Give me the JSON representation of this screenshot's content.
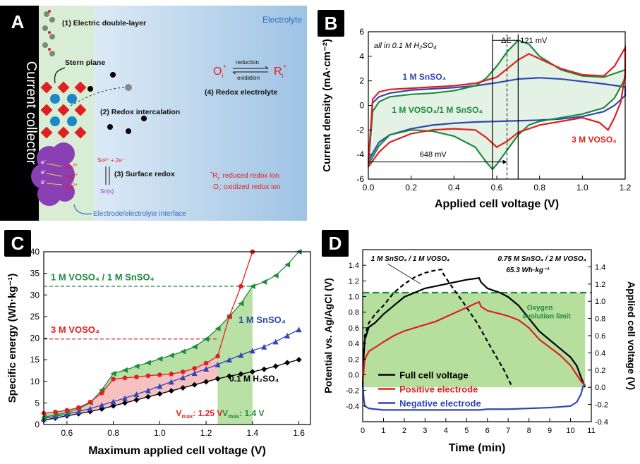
{
  "panels": {
    "A": {
      "badge": "A",
      "collector_label": "Current collector",
      "electrolyte_label": "Electrolyte",
      "mech1": "(1) Electric double-layer",
      "stern": "Stern plane",
      "mech2": "(2) Redox intercalation",
      "mech3": "(3) Surface redox",
      "mech4": "(4) Redox electrolyte",
      "reduction": "reduction",
      "oxidation": "oxidation",
      "o_species": "O",
      "r_species": "R",
      "sub_i": "i",
      "star": "*",
      "sn2": "Sn",
      "sn2_charge": "2+",
      "electron": "e",
      "reaction": "Sn²⁺ + 2e⁻",
      "sn_s": "Sn(s)",
      "legend_r": ": reduced redox ion",
      "legend_o": ": oxidized redox ion",
      "interface": "Electrode/electrolyte interface"
    },
    "B": {
      "badge": "B"
    },
    "C": {
      "badge": "C"
    },
    "D": {
      "badge": "D"
    }
  },
  "colors": {
    "green": "#1e8b3c",
    "red": "#e02020",
    "blue": "#2f47b5",
    "black": "#000000",
    "blue_label": "#2f6fbf",
    "fill_green": "#a7d98f",
    "fill_red": "#f6b6b6"
  },
  "chart_data": [
    {
      "panel": "B",
      "type": "line",
      "xlabel": "Applied cell voltage (V)",
      "ylabel": "Current density (mA·cm⁻²)",
      "xlim": [
        0.0,
        1.2
      ],
      "ylim": [
        -6,
        6
      ],
      "xticks": [
        "0.0",
        "0.2",
        "0.4",
        "0.6",
        "0.8",
        "1.0",
        "1.2"
      ],
      "yticks": [
        "-6",
        "-4",
        "-2",
        "0",
        "2",
        "4",
        "6"
      ],
      "annotation_top": "all in 0.1 M H₂SO₄",
      "annotation_delta": "ΔE ~ 121 mV",
      "annotation_648": "648 mV",
      "vlines": [
        0.58,
        0.648,
        0.7
      ],
      "series": [
        {
          "name": "1 M SnSO₄",
          "color": "#2f47b5",
          "upper": [
            [
              0.0,
              -4.5
            ],
            [
              0.02,
              0.2
            ],
            [
              0.05,
              0.7
            ],
            [
              0.1,
              1.0
            ],
            [
              0.2,
              1.25
            ],
            [
              0.3,
              1.35
            ],
            [
              0.4,
              1.45
            ],
            [
              0.5,
              1.6
            ],
            [
              0.6,
              1.85
            ],
            [
              0.7,
              2.15
            ],
            [
              0.8,
              2.25
            ],
            [
              0.9,
              2.15
            ],
            [
              1.0,
              1.95
            ],
            [
              1.1,
              1.75
            ],
            [
              1.2,
              1.5
            ],
            [
              1.2,
              0.8
            ]
          ],
          "lower": [
            [
              1.2,
              0.8
            ],
            [
              1.15,
              0.0
            ],
            [
              1.1,
              -0.5
            ],
            [
              1.0,
              -0.9
            ],
            [
              0.9,
              -1.1
            ],
            [
              0.8,
              -1.2
            ],
            [
              0.7,
              -1.25
            ],
            [
              0.6,
              -1.3
            ],
            [
              0.5,
              -1.35
            ],
            [
              0.4,
              -1.45
            ],
            [
              0.3,
              -1.6
            ],
            [
              0.2,
              -1.9
            ],
            [
              0.1,
              -2.4
            ],
            [
              0.05,
              -3.0
            ],
            [
              0.0,
              -4.5
            ]
          ]
        },
        {
          "name": "1 M VOSO₄/1 M SnSO₄",
          "color": "#1e8b3c",
          "upper": [
            [
              0.0,
              -4.8
            ],
            [
              0.02,
              -0.5
            ],
            [
              0.05,
              0.3
            ],
            [
              0.1,
              0.7
            ],
            [
              0.2,
              0.9
            ],
            [
              0.3,
              1.0
            ],
            [
              0.4,
              1.2
            ],
            [
              0.5,
              1.6
            ],
            [
              0.55,
              2.2
            ],
            [
              0.6,
              3.2
            ],
            [
              0.65,
              4.4
            ],
            [
              0.7,
              5.3
            ],
            [
              0.75,
              5.0
            ],
            [
              0.8,
              4.0
            ],
            [
              0.9,
              2.9
            ],
            [
              1.0,
              2.4
            ],
            [
              1.1,
              2.3
            ],
            [
              1.2,
              2.9
            ],
            [
              1.2,
              2.2
            ]
          ],
          "lower": [
            [
              1.2,
              2.2
            ],
            [
              1.15,
              0.6
            ],
            [
              1.1,
              -0.2
            ],
            [
              1.0,
              -0.7
            ],
            [
              0.9,
              -1.0
            ],
            [
              0.8,
              -1.3
            ],
            [
              0.75,
              -1.6
            ],
            [
              0.7,
              -2.4
            ],
            [
              0.65,
              -3.6
            ],
            [
              0.6,
              -4.8
            ],
            [
              0.58,
              -5.2
            ],
            [
              0.55,
              -4.6
            ],
            [
              0.5,
              -3.4
            ],
            [
              0.4,
              -2.5
            ],
            [
              0.3,
              -2.1
            ],
            [
              0.2,
              -2.0
            ],
            [
              0.1,
              -2.4
            ],
            [
              0.05,
              -3.3
            ],
            [
              0.0,
              -4.8
            ]
          ]
        },
        {
          "name": "3 M VOSO₄",
          "color": "#e02020",
          "upper": [
            [
              0.0,
              -5.0
            ],
            [
              0.02,
              0.5
            ],
            [
              0.05,
              1.1
            ],
            [
              0.1,
              1.3
            ],
            [
              0.2,
              1.4
            ],
            [
              0.3,
              1.5
            ],
            [
              0.4,
              1.6
            ],
            [
              0.5,
              1.8
            ],
            [
              0.6,
              2.3
            ],
            [
              0.65,
              3.0
            ],
            [
              0.7,
              3.7
            ],
            [
              0.75,
              4.2
            ],
            [
              0.8,
              3.8
            ],
            [
              0.9,
              3.0
            ],
            [
              1.0,
              2.5
            ],
            [
              1.1,
              2.4
            ],
            [
              1.15,
              3.2
            ],
            [
              1.2,
              4.7
            ],
            [
              1.2,
              2.6
            ]
          ],
          "lower": [
            [
              1.2,
              2.6
            ],
            [
              1.18,
              0.3
            ],
            [
              1.15,
              -1.0
            ],
            [
              1.12,
              -2.0
            ],
            [
              1.08,
              -1.4
            ],
            [
              1.0,
              -1.0
            ],
            [
              0.9,
              -1.3
            ],
            [
              0.8,
              -1.6
            ],
            [
              0.7,
              -2.2
            ],
            [
              0.65,
              -2.9
            ],
            [
              0.6,
              -3.4
            ],
            [
              0.55,
              -2.6
            ],
            [
              0.5,
              -2.0
            ],
            [
              0.4,
              -1.9
            ],
            [
              0.3,
              -2.0
            ],
            [
              0.2,
              -2.3
            ],
            [
              0.1,
              -3.0
            ],
            [
              0.05,
              -3.8
            ],
            [
              0.0,
              -5.0
            ]
          ]
        }
      ]
    },
    {
      "panel": "C",
      "type": "line",
      "xlabel": "Maximum applied cell voltage (V)",
      "ylabel": "Specific energy (Wh·kg⁻¹)",
      "xlim": [
        0.5,
        1.65
      ],
      "ylim": [
        0,
        40
      ],
      "xticks": [
        "0.6",
        "0.8",
        "1.0",
        "1.2",
        "1.4",
        "1.6"
      ],
      "yticks": [
        "0",
        "5",
        "10",
        "15",
        "20",
        "25",
        "30",
        "35",
        "40"
      ],
      "hline_green": {
        "y": 32,
        "label": "1 M VOSO₄ / 1 M SnSO₄"
      },
      "hline_red": {
        "y": 19.8,
        "label": "3 M VOSO₄"
      },
      "vmax_red": "V",
      "vmax_red_sub": "max",
      "vmax_red_val": ": 1.25 V",
      "vmax_green_val": ": 1.4 V",
      "vmax_red_x": 1.25,
      "vmax_green_x": 1.4,
      "series": [
        {
          "name": "0.1 M H₂SO₄",
          "color": "#000000",
          "marker": "diamond",
          "x": [
            0.5,
            0.55,
            0.6,
            0.65,
            0.7,
            0.75,
            0.8,
            0.85,
            0.9,
            0.95,
            1.0,
            1.05,
            1.1,
            1.15,
            1.2,
            1.25,
            1.3,
            1.35,
            1.4,
            1.45,
            1.5,
            1.55,
            1.6
          ],
          "y": [
            1.0,
            1.5,
            2.0,
            2.5,
            3.0,
            3.6,
            4.3,
            5.0,
            5.7,
            6.4,
            7.1,
            7.8,
            8.5,
            9.2,
            9.9,
            10.6,
            11.2,
            11.7,
            12.2,
            12.8,
            13.5,
            14.3,
            15.0
          ]
        },
        {
          "name": "1 M SnSO₄",
          "color": "#2f47b5",
          "marker": "triangle",
          "x": [
            0.5,
            0.55,
            0.6,
            0.65,
            0.7,
            0.75,
            0.8,
            0.85,
            0.9,
            0.95,
            1.0,
            1.05,
            1.1,
            1.15,
            1.2,
            1.25,
            1.3,
            1.35,
            1.4,
            1.45,
            1.5,
            1.55,
            1.6
          ],
          "y": [
            1.4,
            1.9,
            2.4,
            3.0,
            3.7,
            4.5,
            5.3,
            6.1,
            7.0,
            7.9,
            8.9,
            9.9,
            10.9,
            11.9,
            12.9,
            13.9,
            15.0,
            16.1,
            17.1,
            18.0,
            19.2,
            20.6,
            22.0
          ]
        },
        {
          "name": "1 M VOSO₄ / 1 M SnSO₄",
          "color": "#1e8b3c",
          "marker": "triangle-left",
          "x": [
            0.5,
            0.55,
            0.6,
            0.65,
            0.7,
            0.75,
            0.8,
            0.85,
            0.9,
            0.95,
            1.0,
            1.05,
            1.1,
            1.15,
            1.2,
            1.25,
            1.3,
            1.35,
            1.4,
            1.45,
            1.5,
            1.55,
            1.6
          ],
          "y": [
            1.7,
            2.2,
            2.8,
            3.6,
            5.0,
            8.0,
            11.8,
            12.6,
            13.5,
            14.3,
            15.2,
            16.0,
            16.9,
            18.0,
            19.8,
            22.2,
            25.0,
            28.0,
            32.0,
            33.0,
            34.5,
            37.0,
            40.0
          ]
        },
        {
          "name": "3 M VOSO₄",
          "color": "#e02020",
          "marker": "circle",
          "x": [
            0.5,
            0.55,
            0.6,
            0.65,
            0.7,
            0.75,
            0.8,
            0.85,
            0.9,
            0.95,
            1.0,
            1.05,
            1.1,
            1.15,
            1.2,
            1.25,
            1.3,
            1.35,
            1.4
          ],
          "y": [
            2.6,
            2.9,
            3.3,
            3.9,
            5.2,
            7.3,
            10.5,
            10.8,
            11.0,
            11.3,
            11.5,
            11.7,
            12.2,
            13.0,
            14.2,
            15.8,
            25.0,
            32.0,
            40.0
          ]
        }
      ]
    },
    {
      "panel": "D",
      "type": "line",
      "xlabel": "Time (min)",
      "ylabel_left": "Potential vs. Ag/AgCl (V)",
      "ylabel_right": "Applied cell voltage (V)",
      "xlim": [
        0,
        11
      ],
      "ylim_left": [
        -0.6,
        1.6
      ],
      "ylim_right": [
        -0.4,
        1.6
      ],
      "xticks": [
        "0",
        "1",
        "2",
        "3",
        "4",
        "5",
        "6",
        "7",
        "8",
        "9",
        "10",
        "11"
      ],
      "yticks_left": [
        "-0.4",
        "-0.2",
        "0.0",
        "0.2",
        "0.4",
        "0.6",
        "0.8",
        "1.0",
        "1.2",
        "1.4"
      ],
      "yticks_right": [
        "-0.4",
        "-0.2",
        "0.0",
        "0.2",
        "0.4",
        "0.6",
        "0.8",
        "1.0",
        "1.2",
        "1.4"
      ],
      "oxygen_limit": 0.98,
      "oxygen_label_1": "Oxygen",
      "oxygen_label_2": "evolution limit",
      "annot_dashed": "1 M SnSO₄ / 1 M VOSO₄",
      "annot_solid": "0.75 M SnSO₄ / 2 M VOSO₄",
      "annot_energy": "65.3 Wh·kg⁻¹",
      "series": [
        {
          "name": "Full cell voltage",
          "color": "#000000",
          "axis": "right",
          "x": [
            0,
            0.05,
            0.1,
            0.3,
            0.6,
            1.0,
            1.5,
            2.0,
            2.5,
            3.0,
            4.0,
            5.0,
            5.6,
            5.7,
            6.0,
            6.6,
            7.0,
            7.5,
            8.0,
            8.5,
            9.0,
            9.5,
            10.0,
            10.3,
            10.5,
            10.7
          ],
          "y": [
            0.0,
            0.35,
            0.55,
            0.7,
            0.75,
            0.85,
            0.95,
            1.05,
            1.1,
            1.15,
            1.2,
            1.25,
            1.27,
            1.22,
            1.15,
            1.1,
            1.05,
            0.95,
            0.8,
            0.65,
            0.55,
            0.45,
            0.35,
            0.25,
            0.12,
            0.0
          ]
        },
        {
          "name": "1 M SnSO₄ / 1 M VOSO₄",
          "color": "#000000",
          "dashed": true,
          "axis": "right",
          "x": [
            0,
            0.05,
            0.1,
            0.3,
            0.6,
            1.0,
            1.5,
            2.0,
            2.5,
            3.0,
            3.5,
            3.8,
            3.85,
            4.2,
            4.8,
            5.5,
            6.2,
            6.8,
            7.2
          ],
          "y": [
            0.0,
            0.4,
            0.6,
            0.75,
            0.85,
            0.95,
            1.1,
            1.2,
            1.28,
            1.33,
            1.36,
            1.37,
            1.33,
            1.2,
            1.0,
            0.75,
            0.45,
            0.2,
            0.0
          ]
        },
        {
          "name": "Positive electrode",
          "color": "#e02020",
          "axis": "left",
          "x": [
            0,
            0.05,
            0.1,
            0.3,
            0.6,
            1.0,
            1.5,
            2.0,
            2.5,
            3.0,
            3.5,
            4.0,
            4.5,
            5.0,
            5.5,
            5.6,
            5.7,
            6.0,
            6.6,
            7.0,
            7.5,
            8.0,
            8.5,
            9.0,
            9.5,
            10.0,
            10.3,
            10.5,
            10.7
          ],
          "y": [
            -0.1,
            0.05,
            0.2,
            0.3,
            0.35,
            0.42,
            0.5,
            0.56,
            0.6,
            0.64,
            0.68,
            0.74,
            0.8,
            0.86,
            0.92,
            0.93,
            0.87,
            0.82,
            0.78,
            0.75,
            0.7,
            0.6,
            0.45,
            0.35,
            0.25,
            0.12,
            0.0,
            -0.08,
            -0.14
          ]
        },
        {
          "name": "Negative electrode",
          "color": "#2f47b5",
          "axis": "left",
          "x": [
            0,
            0.05,
            0.1,
            0.3,
            0.6,
            1.0,
            2.0,
            3.0,
            4.0,
            5.0,
            5.6,
            6.0,
            7.0,
            8.0,
            9.0,
            10.0,
            10.3,
            10.5,
            10.6,
            10.7
          ],
          "y": [
            -0.12,
            -0.3,
            -0.4,
            -0.43,
            -0.44,
            -0.45,
            -0.45,
            -0.45,
            -0.45,
            -0.45,
            -0.45,
            -0.44,
            -0.44,
            -0.43,
            -0.42,
            -0.4,
            -0.35,
            -0.25,
            -0.15,
            -0.12
          ]
        }
      ]
    }
  ]
}
